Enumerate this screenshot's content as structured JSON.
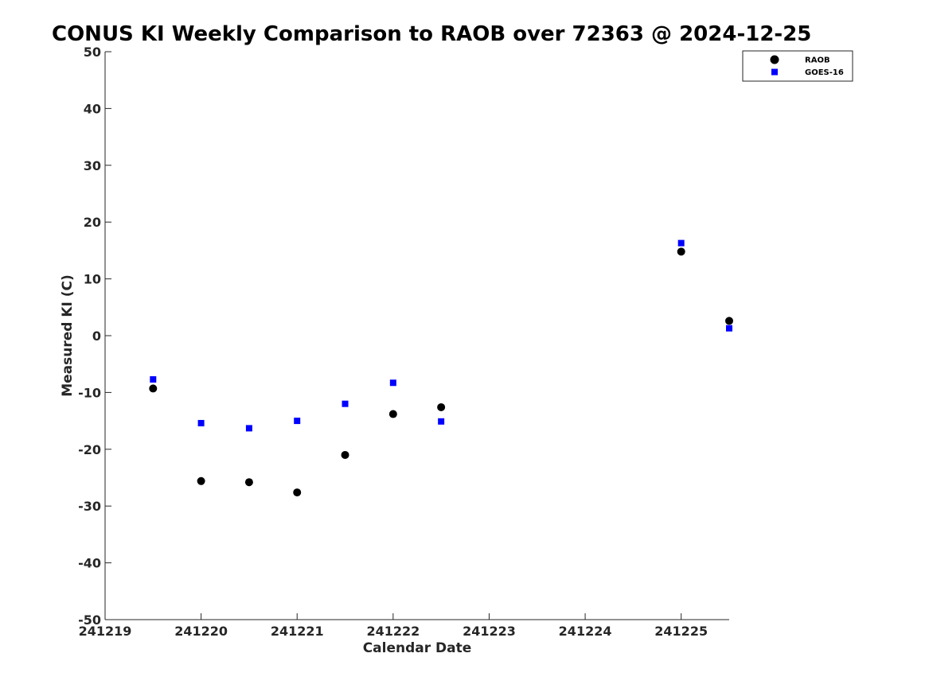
{
  "chart_data": {
    "type": "scatter",
    "title": "CONUS KI Weekly Comparison to RAOB over 72363 @ 2024-12-25",
    "xlabel": "Calendar Date",
    "ylabel": "Measured KI (C)",
    "x_tick_labels": [
      "241219",
      "241220",
      "241221",
      "241222",
      "241223",
      "241224",
      "241225"
    ],
    "x_tick_values": [
      241219,
      241220,
      241221,
      241222,
      241223,
      241224,
      241225
    ],
    "xlim": [
      241219,
      241225.5
    ],
    "ylim": [
      -50,
      50
    ],
    "y_ticks": [
      -50,
      -40,
      -30,
      -20,
      -10,
      0,
      10,
      20,
      30,
      40,
      50
    ],
    "grid": false,
    "legend_position": "top-right",
    "series": [
      {
        "name": "RAOB",
        "marker": "circle",
        "color": "#000000",
        "x": [
          241219.5,
          241220,
          241220.5,
          241221,
          241221.5,
          241222,
          241222.5,
          241225,
          241225.5
        ],
        "y": [
          -9.3,
          -25.6,
          -25.8,
          -27.6,
          -21.0,
          -13.8,
          -12.6,
          14.8,
          2.6
        ]
      },
      {
        "name": "GOES-16",
        "marker": "square",
        "color": "#0000ff",
        "x": [
          241219.5,
          241220,
          241220.5,
          241221,
          241221.5,
          241222,
          241222.5,
          241225,
          241225.5
        ],
        "y": [
          -7.7,
          -15.4,
          -16.3,
          -15.0,
          -12.0,
          -8.3,
          -15.1,
          16.3,
          1.3
        ]
      }
    ]
  }
}
